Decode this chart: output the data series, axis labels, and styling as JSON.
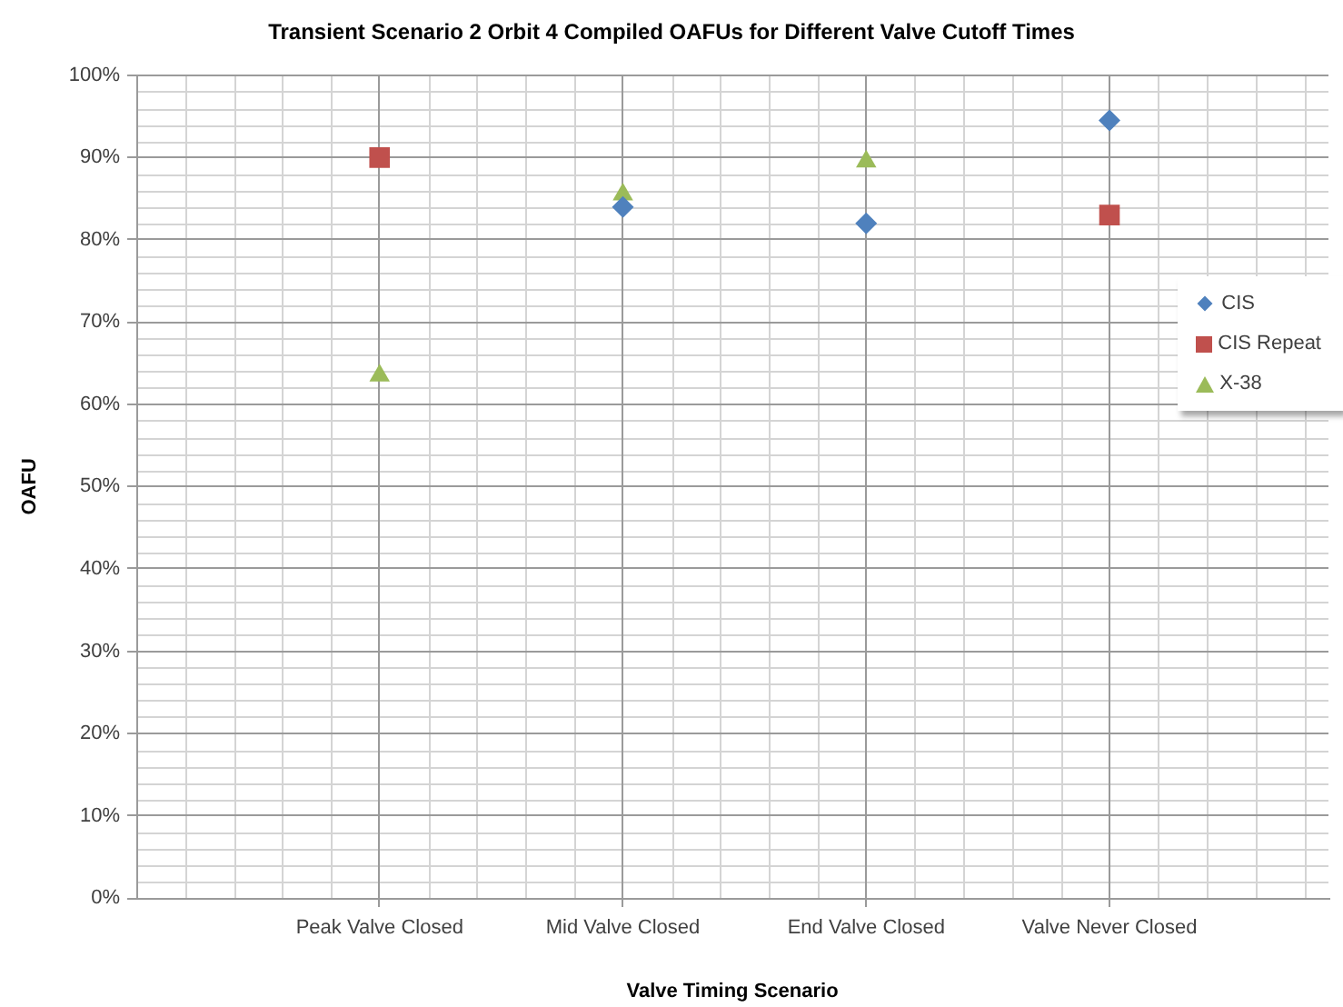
{
  "chart_data": {
    "type": "scatter",
    "title": "Transient Scenario 2 Orbit 4 Compiled OAFUs for Different Valve Cutoff Times",
    "xlabel": "Valve Timing Scenario",
    "ylabel": "OAFU",
    "categories": [
      "Peak Valve Closed",
      "Mid Valve Closed",
      "End Valve Closed",
      "Valve Never Closed"
    ],
    "series": [
      {
        "name": "CIS",
        "color": "#4f81bd",
        "marker": "diamond",
        "values": [
          null,
          84,
          82,
          94.5
        ]
      },
      {
        "name": "CIS Repeat",
        "color": "#c0504d",
        "marker": "square",
        "values": [
          90,
          null,
          null,
          83
        ]
      },
      {
        "name": "X-38",
        "color": "#9bbb59",
        "marker": "triangle",
        "values": [
          63.5,
          85.5,
          89.5,
          null
        ]
      }
    ],
    "ylim": [
      0,
      100
    ],
    "yticks": [
      {
        "value": 0,
        "label": "0%"
      },
      {
        "value": 10,
        "label": "10%"
      },
      {
        "value": 20,
        "label": "20%"
      },
      {
        "value": 30,
        "label": "30%"
      },
      {
        "value": 40,
        "label": "40%"
      },
      {
        "value": 50,
        "label": "50%"
      },
      {
        "value": 60,
        "label": "60%"
      },
      {
        "value": 70,
        "label": "70%"
      },
      {
        "value": 80,
        "label": "80%"
      },
      {
        "value": 90,
        "label": "90%"
      },
      {
        "value": 100,
        "label": "100%"
      }
    ],
    "grid": true,
    "legend": "right"
  }
}
